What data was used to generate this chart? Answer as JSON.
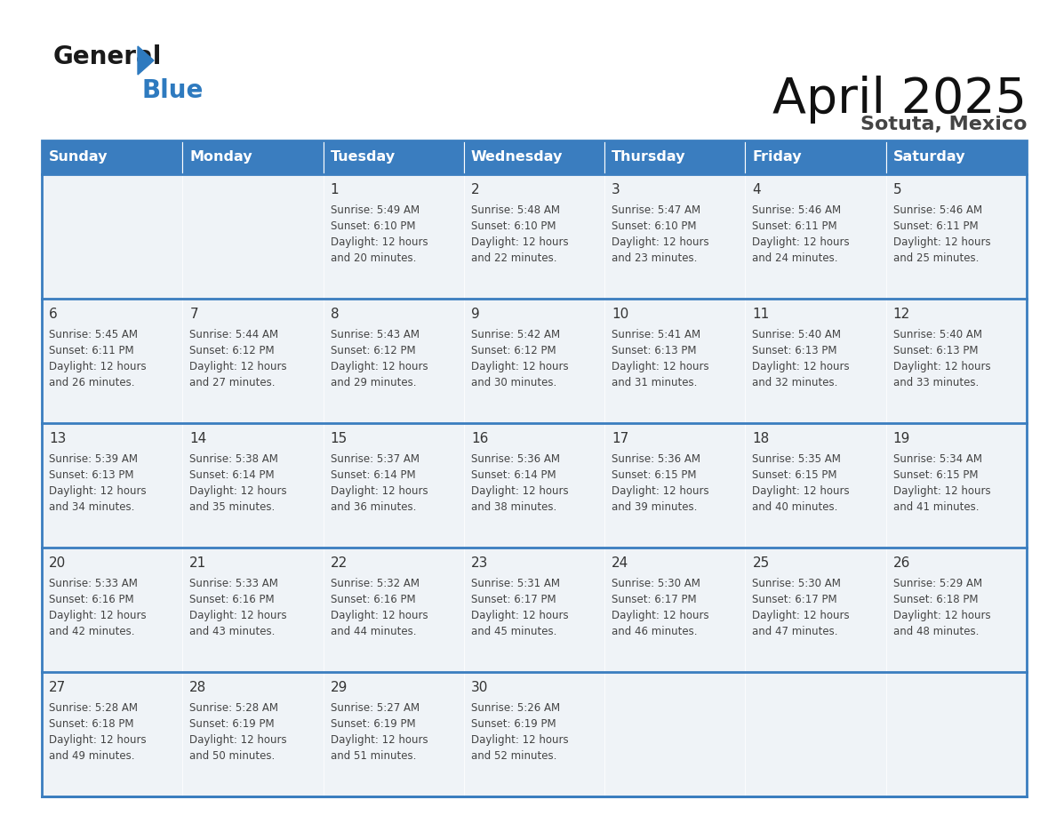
{
  "title": "April 2025",
  "subtitle": "Sotuta, Mexico",
  "days_of_week": [
    "Sunday",
    "Monday",
    "Tuesday",
    "Wednesday",
    "Thursday",
    "Friday",
    "Saturday"
  ],
  "header_bg": "#3a7dbf",
  "header_text": "#ffffff",
  "cell_bg": "#eff3f7",
  "row_separator": "#3a7dbf",
  "text_color": "#444444",
  "day_num_color": "#333333",
  "calendar": [
    [
      null,
      null,
      {
        "day": 1,
        "sunrise": "5:49 AM",
        "sunset": "6:10 PM",
        "daylight_mins": 20
      },
      {
        "day": 2,
        "sunrise": "5:48 AM",
        "sunset": "6:10 PM",
        "daylight_mins": 22
      },
      {
        "day": 3,
        "sunrise": "5:47 AM",
        "sunset": "6:10 PM",
        "daylight_mins": 23
      },
      {
        "day": 4,
        "sunrise": "5:46 AM",
        "sunset": "6:11 PM",
        "daylight_mins": 24
      },
      {
        "day": 5,
        "sunrise": "5:46 AM",
        "sunset": "6:11 PM",
        "daylight_mins": 25
      }
    ],
    [
      {
        "day": 6,
        "sunrise": "5:45 AM",
        "sunset": "6:11 PM",
        "daylight_mins": 26
      },
      {
        "day": 7,
        "sunrise": "5:44 AM",
        "sunset": "6:12 PM",
        "daylight_mins": 27
      },
      {
        "day": 8,
        "sunrise": "5:43 AM",
        "sunset": "6:12 PM",
        "daylight_mins": 29
      },
      {
        "day": 9,
        "sunrise": "5:42 AM",
        "sunset": "6:12 PM",
        "daylight_mins": 30
      },
      {
        "day": 10,
        "sunrise": "5:41 AM",
        "sunset": "6:13 PM",
        "daylight_mins": 31
      },
      {
        "day": 11,
        "sunrise": "5:40 AM",
        "sunset": "6:13 PM",
        "daylight_mins": 32
      },
      {
        "day": 12,
        "sunrise": "5:40 AM",
        "sunset": "6:13 PM",
        "daylight_mins": 33
      }
    ],
    [
      {
        "day": 13,
        "sunrise": "5:39 AM",
        "sunset": "6:13 PM",
        "daylight_mins": 34
      },
      {
        "day": 14,
        "sunrise": "5:38 AM",
        "sunset": "6:14 PM",
        "daylight_mins": 35
      },
      {
        "day": 15,
        "sunrise": "5:37 AM",
        "sunset": "6:14 PM",
        "daylight_mins": 36
      },
      {
        "day": 16,
        "sunrise": "5:36 AM",
        "sunset": "6:14 PM",
        "daylight_mins": 38
      },
      {
        "day": 17,
        "sunrise": "5:36 AM",
        "sunset": "6:15 PM",
        "daylight_mins": 39
      },
      {
        "day": 18,
        "sunrise": "5:35 AM",
        "sunset": "6:15 PM",
        "daylight_mins": 40
      },
      {
        "day": 19,
        "sunrise": "5:34 AM",
        "sunset": "6:15 PM",
        "daylight_mins": 41
      }
    ],
    [
      {
        "day": 20,
        "sunrise": "5:33 AM",
        "sunset": "6:16 PM",
        "daylight_mins": 42
      },
      {
        "day": 21,
        "sunrise": "5:33 AM",
        "sunset": "6:16 PM",
        "daylight_mins": 43
      },
      {
        "day": 22,
        "sunrise": "5:32 AM",
        "sunset": "6:16 PM",
        "daylight_mins": 44
      },
      {
        "day": 23,
        "sunrise": "5:31 AM",
        "sunset": "6:17 PM",
        "daylight_mins": 45
      },
      {
        "day": 24,
        "sunrise": "5:30 AM",
        "sunset": "6:17 PM",
        "daylight_mins": 46
      },
      {
        "day": 25,
        "sunrise": "5:30 AM",
        "sunset": "6:17 PM",
        "daylight_mins": 47
      },
      {
        "day": 26,
        "sunrise": "5:29 AM",
        "sunset": "6:18 PM",
        "daylight_mins": 48
      }
    ],
    [
      {
        "day": 27,
        "sunrise": "5:28 AM",
        "sunset": "6:18 PM",
        "daylight_mins": 49
      },
      {
        "day": 28,
        "sunrise": "5:28 AM",
        "sunset": "6:19 PM",
        "daylight_mins": 50
      },
      {
        "day": 29,
        "sunrise": "5:27 AM",
        "sunset": "6:19 PM",
        "daylight_mins": 51
      },
      {
        "day": 30,
        "sunrise": "5:26 AM",
        "sunset": "6:19 PM",
        "daylight_mins": 52
      },
      null,
      null,
      null
    ]
  ]
}
